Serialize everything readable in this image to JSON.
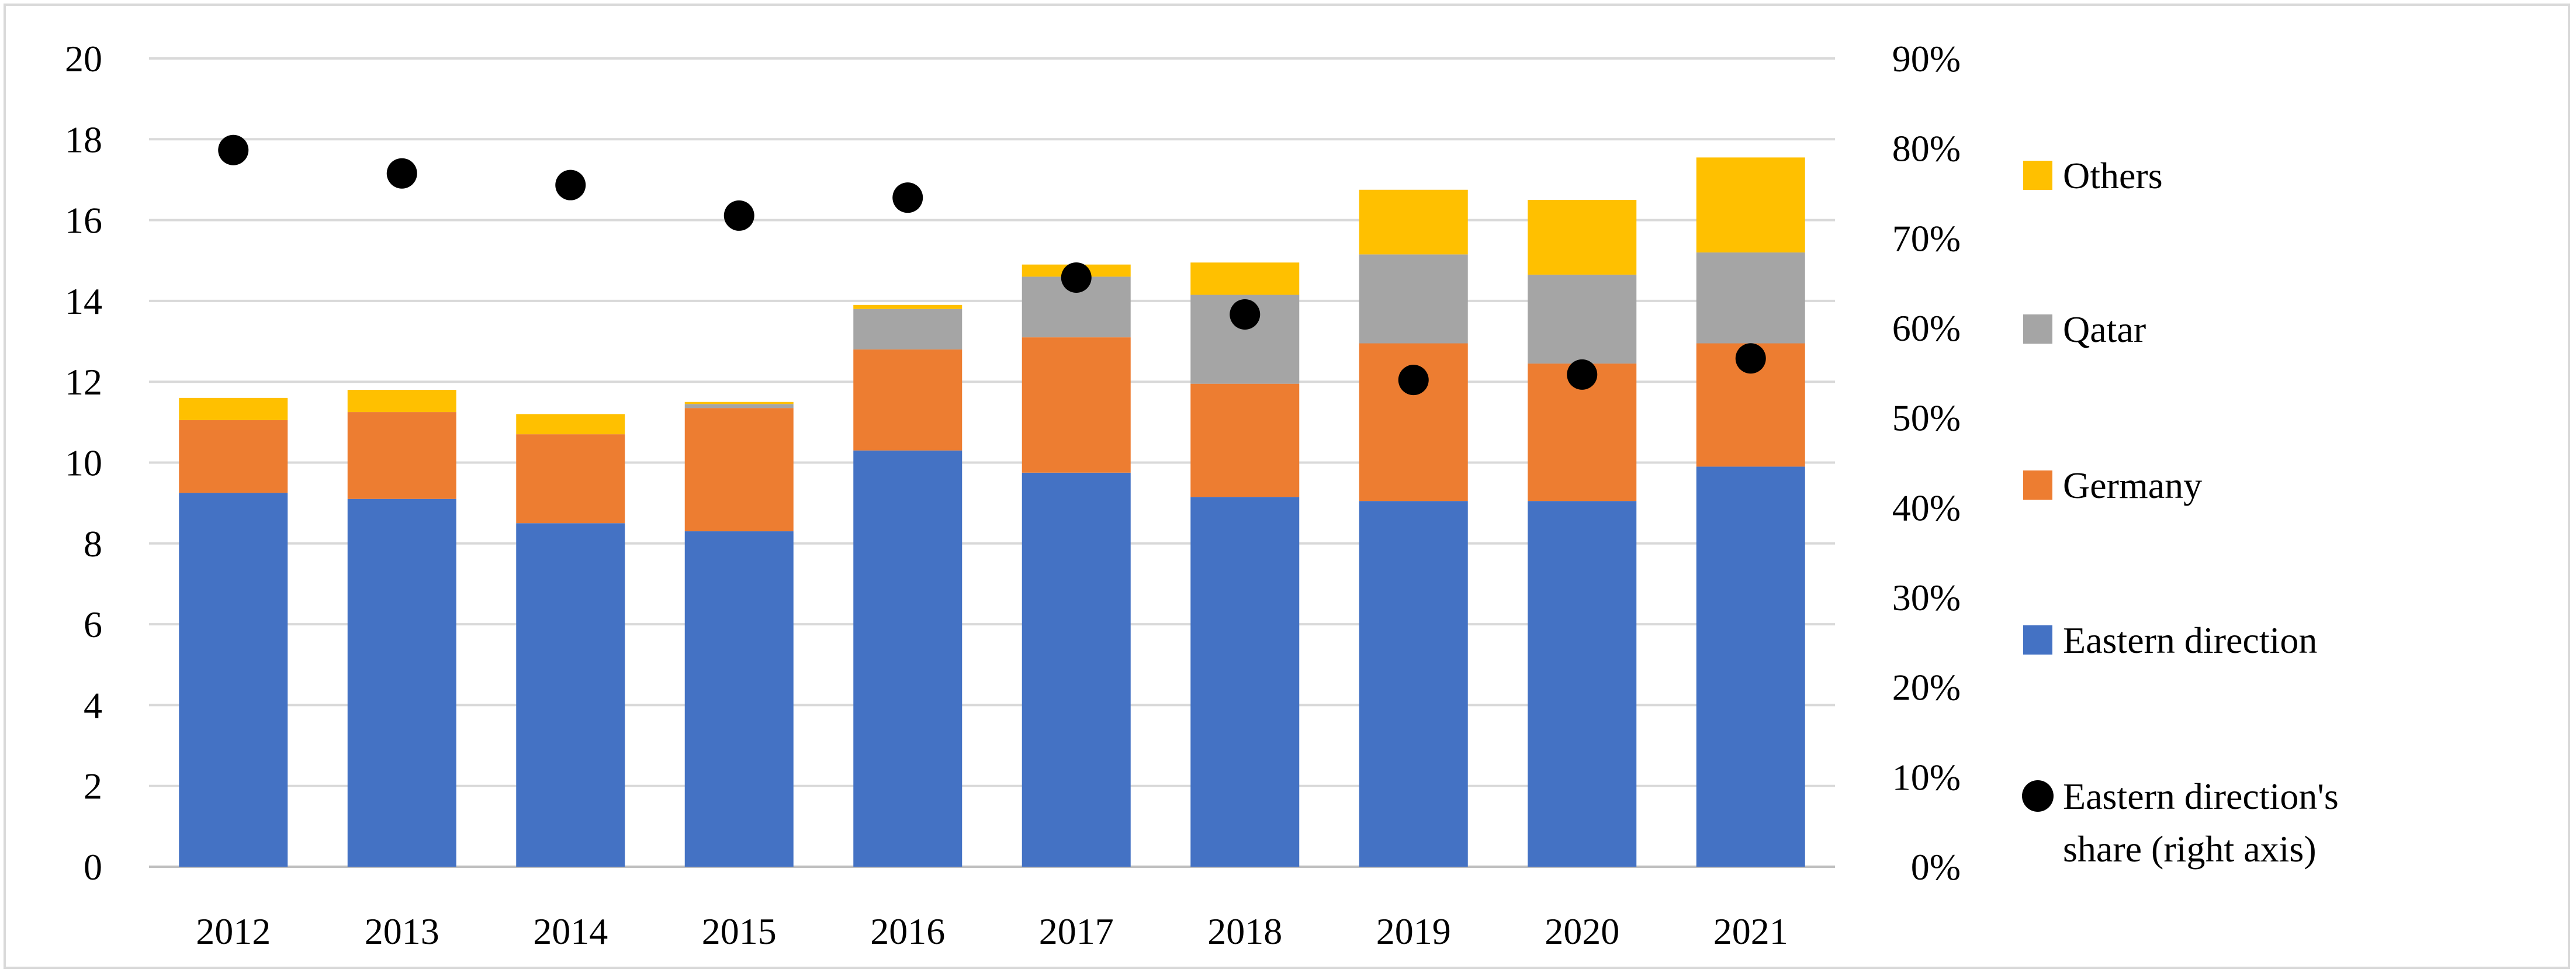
{
  "chart_data": {
    "type": "bar",
    "stacked": true,
    "title": "",
    "xlabel": "",
    "ylabel": "",
    "y2label": "",
    "categories": [
      "2012",
      "2013",
      "2014",
      "2015",
      "2016",
      "2017",
      "2018",
      "2019",
      "2020",
      "2021"
    ],
    "ylim": [
      0,
      20
    ],
    "yticks": [
      "0",
      "2",
      "4",
      "6",
      "8",
      "10",
      "12",
      "14",
      "16",
      "18",
      "20"
    ],
    "y2lim": [
      0,
      90
    ],
    "y2ticks": [
      "0%",
      "10%",
      "20%",
      "30%",
      "40%",
      "50%",
      "60%",
      "70%",
      "80%",
      "90%"
    ],
    "grid": true,
    "legend_position": "right",
    "series": [
      {
        "name": "Eastern direction",
        "color": "#4472c4",
        "values": [
          9.25,
          9.1,
          8.5,
          8.3,
          10.3,
          9.75,
          9.15,
          9.05,
          9.05,
          9.9
        ]
      },
      {
        "name": "Germany",
        "color": "#ed7d31",
        "values": [
          1.8,
          2.15,
          2.2,
          3.05,
          2.5,
          3.35,
          2.8,
          3.9,
          3.4,
          3.05
        ]
      },
      {
        "name": "Qatar",
        "color": "#a5a5a5",
        "values": [
          0.0,
          0.0,
          0.0,
          0.1,
          1.0,
          1.5,
          2.2,
          2.2,
          2.2,
          2.25
        ]
      },
      {
        "name": "Others",
        "color": "#ffc000",
        "values": [
          0.55,
          0.55,
          0.5,
          0.05,
          0.1,
          0.3,
          0.8,
          1.6,
          1.85,
          2.35
        ]
      }
    ],
    "scatter_series": {
      "name": "Eastern direction's share (right axis)",
      "color": "#000000",
      "axis": "right",
      "values": [
        79.8,
        77.2,
        75.9,
        72.5,
        74.5,
        65.6,
        61.5,
        54.2,
        54.8,
        56.6
      ]
    },
    "legend": [
      {
        "label": "Others",
        "marker": "square",
        "color": "#ffc000"
      },
      {
        "label": "Qatar",
        "marker": "square",
        "color": "#a5a5a5"
      },
      {
        "label": "Germany",
        "marker": "square",
        "color": "#ed7d31"
      },
      {
        "label": "Eastern direction",
        "marker": "square",
        "color": "#4472c4"
      },
      {
        "label": "Eastern direction's",
        "label_line2": "share (right axis)",
        "marker": "circle",
        "color": "#000000"
      }
    ]
  }
}
